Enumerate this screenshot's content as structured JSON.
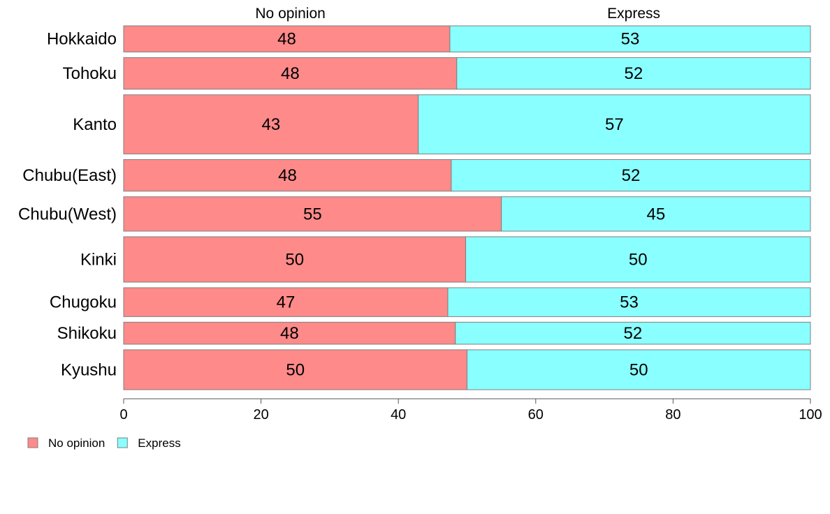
{
  "chart_data": {
    "type": "bar",
    "orientation": "horizontal",
    "stacked": true,
    "categories": [
      "Hokkaido",
      "Tohoku",
      "Kanto",
      "Chubu(East)",
      "Chubu(West)",
      "Kinki",
      "Chugoku",
      "Shikoku",
      "Kyushu"
    ],
    "series": [
      {
        "name": "No opinion",
        "color": "#ff8a8a",
        "values": [
          48,
          48,
          43,
          48,
          55,
          50,
          47,
          48,
          50
        ]
      },
      {
        "name": "Express",
        "color": "#8affff",
        "values": [
          53,
          52,
          57,
          52,
          45,
          50,
          53,
          52,
          50
        ]
      }
    ],
    "plotted_fraction": [
      0.475,
      0.485,
      0.429,
      0.477,
      0.55,
      0.498,
      0.472,
      0.483,
      0.5
    ],
    "relative_bar_widths": [
      38,
      46,
      86,
      46,
      50,
      66,
      42,
      32,
      58
    ],
    "top_labels": [
      "No opinion",
      "Express"
    ],
    "xticks": [
      "0",
      "20",
      "40",
      "60",
      "80",
      "100"
    ],
    "xlim": [
      0,
      100
    ],
    "grid": false,
    "legend_position": "bottom-left"
  }
}
